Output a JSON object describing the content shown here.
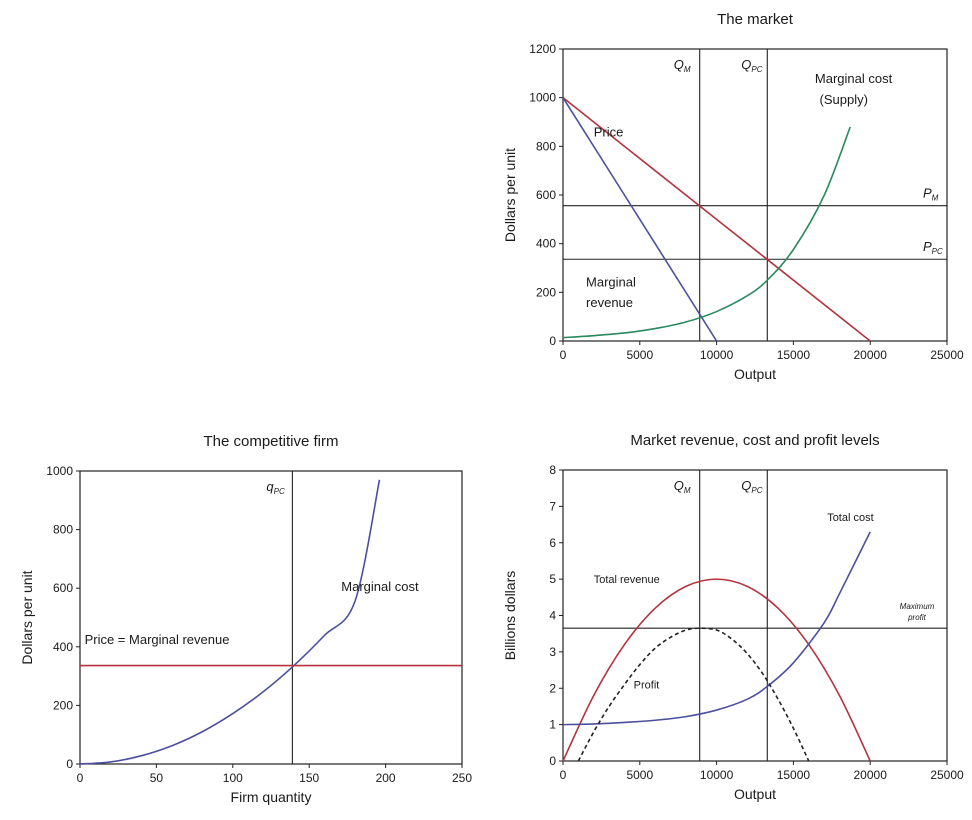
{
  "chart_data": [
    {
      "id": "market",
      "type": "line",
      "title": "The market",
      "xlabel": "Output",
      "ylabel": "Dollars per unit",
      "xlim": [
        0,
        25000
      ],
      "ylim": [
        0,
        1200
      ],
      "xticks": [
        0,
        5000,
        10000,
        15000,
        20000,
        25000
      ],
      "yticks": [
        0,
        200,
        400,
        600,
        800,
        1000,
        1200
      ],
      "series": [
        {
          "key": "price",
          "color": "#b5333d",
          "x": [
            0,
            20000
          ],
          "y": [
            1000,
            0
          ]
        },
        {
          "key": "mr",
          "color": "#4b4f9e",
          "x": [
            0,
            10000
          ],
          "y": [
            1000,
            0
          ]
        },
        {
          "key": "mc",
          "color": "#2a8a5e",
          "x": [
            0,
            2000,
            4000,
            6000,
            8000,
            10000,
            12000,
            13300,
            15000,
            17000,
            18700
          ],
          "y": [
            14,
            22,
            33,
            51,
            78,
            121,
            186,
            250,
            376,
            598,
            880
          ]
        }
      ],
      "hlines": [
        {
          "y": 556,
          "label": "P",
          "sub": "M"
        },
        {
          "y": 336,
          "label": "P",
          "sub": "PC"
        }
      ],
      "vlines": [
        {
          "x": 8900,
          "label": "Q",
          "sub": "M"
        },
        {
          "x": 13300,
          "label": "Q",
          "sub": "PC"
        }
      ],
      "annotations": [
        {
          "text": "Price",
          "x": 2000,
          "y": 840
        },
        {
          "text": "Marginal cost",
          "x": 16400,
          "y": 1060
        },
        {
          "text": "(Supply)",
          "x": 16700,
          "y": 975
        },
        {
          "text": "Marginal",
          "x": 1500,
          "y": 225
        },
        {
          "text": "revenue",
          "x": 1500,
          "y": 140
        }
      ]
    },
    {
      "id": "firm",
      "type": "line",
      "title": "The competitive firm",
      "xlabel": "Firm quantity",
      "ylabel": "Dollars per unit",
      "xlim": [
        0,
        250
      ],
      "ylim": [
        0,
        1000
      ],
      "xticks": [
        0,
        50,
        100,
        150,
        200,
        250
      ],
      "yticks": [
        0,
        200,
        400,
        600,
        800,
        1000
      ],
      "series": [
        {
          "key": "mc",
          "color": "#4b4f9e",
          "x": [
            0,
            20,
            40,
            60,
            80,
            100,
            120,
            140,
            160,
            180,
            196
          ],
          "y": [
            0,
            7,
            28,
            62,
            110,
            172,
            247,
            336,
            439,
            556,
            970
          ]
        },
        {
          "key": "price",
          "color": "#b5333d",
          "x": [
            0,
            250
          ],
          "y": [
            336,
            336
          ]
        }
      ],
      "vlines": [
        {
          "x": 139,
          "label": "q",
          "sub": "PC"
        }
      ],
      "annotations": [
        {
          "text": "Marginal cost",
          "x": 171,
          "y": 590
        },
        {
          "text": "Price = Marginal revenue",
          "x": 3,
          "y": 410
        }
      ]
    },
    {
      "id": "revenue",
      "type": "line",
      "title": "Market revenue, cost and profit levels",
      "xlabel": "Output",
      "ylabel": "Billions dollars",
      "xlim": [
        0,
        25000
      ],
      "ylim": [
        0,
        8
      ],
      "xticks": [
        0,
        5000,
        10000,
        15000,
        20000,
        25000
      ],
      "yticks": [
        0,
        1,
        2,
        3,
        4,
        5,
        6,
        7,
        8
      ],
      "series": [
        {
          "key": "tr",
          "color": "#b5333d",
          "x": [
            0,
            2000,
            4000,
            6000,
            8000,
            10000,
            12000,
            14000,
            16000,
            18000,
            20000
          ],
          "y": [
            0,
            1.8,
            3.2,
            4.2,
            4.8,
            5.0,
            4.8,
            4.2,
            3.2,
            1.8,
            0
          ]
        },
        {
          "key": "tc",
          "color": "#4b4f9e",
          "x": [
            0,
            2000,
            4000,
            6000,
            8000,
            10000,
            12000,
            13300,
            15000,
            17000,
            18000,
            20000
          ],
          "y": [
            1.0,
            1.02,
            1.06,
            1.12,
            1.22,
            1.4,
            1.7,
            2.05,
            2.7,
            3.8,
            4.6,
            6.3
          ]
        },
        {
          "key": "profit",
          "color": "#222222",
          "dash": "4,3",
          "x": [
            1000,
            2000,
            3000,
            4000,
            5000,
            6000,
            7000,
            8000,
            8900,
            10000,
            11000,
            12000,
            13000,
            14000,
            15000,
            16000
          ],
          "y": [
            0.0,
            0.8,
            1.5,
            2.1,
            2.65,
            3.1,
            3.4,
            3.6,
            3.65,
            3.6,
            3.35,
            2.95,
            2.4,
            1.7,
            0.9,
            0.0
          ]
        }
      ],
      "hlines": [
        {
          "y": 3.65,
          "label": "Maximum",
          "label2": "profit"
        }
      ],
      "vlines": [
        {
          "x": 8900,
          "label": "Q",
          "sub": "M"
        },
        {
          "x": 13300,
          "label": "Q",
          "sub": "PC"
        }
      ],
      "annotations": [
        {
          "text": "Total cost",
          "x": 17200,
          "y": 6.6
        },
        {
          "text": "Total revenue",
          "x": 2000,
          "y": 4.9
        },
        {
          "text": "Profit",
          "x": 4600,
          "y": 2.0
        }
      ]
    }
  ]
}
